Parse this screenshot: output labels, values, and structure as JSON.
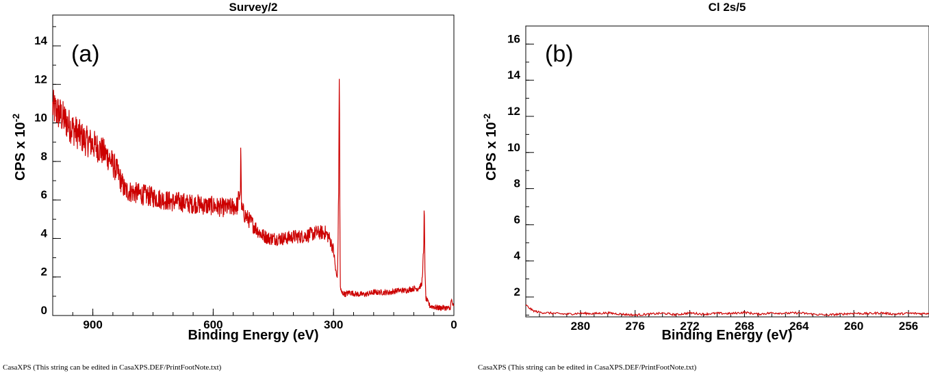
{
  "chart_data": [
    {
      "type": "line",
      "title": "Survey/2",
      "panel_tag": "(a)",
      "xlabel": "Binding Energy (eV)",
      "ylabel_main": "CPS x 10",
      "ylabel_exp": "-2",
      "xlim": [
        1000,
        0
      ],
      "ylim": [
        0,
        15.6
      ],
      "x_ticks": [
        900,
        600,
        300,
        0
      ],
      "y_ticks": [
        0,
        2,
        4,
        6,
        8,
        10,
        12,
        14
      ],
      "x_minor_step": 50,
      "y_minor_step": 1,
      "footnote": "CasaXPS (This string can be edited in CasaXPS.DEF/PrintFootNote.txt)",
      "line_color": "#cc0000",
      "series": [
        {
          "x": [
            1000,
            980,
            960,
            940,
            920,
            900,
            880,
            860,
            840,
            820,
            800,
            780,
            760,
            740,
            720,
            700,
            680,
            660,
            640,
            620,
            600,
            580,
            560,
            540,
            532,
            531,
            530,
            529,
            520,
            500,
            480,
            460,
            440,
            420,
            400,
            380,
            360,
            340,
            320,
            310,
            300,
            295,
            292,
            290,
            287,
            286,
            285,
            284,
            283,
            282,
            280,
            270,
            260,
            240,
            220,
            200,
            180,
            160,
            140,
            120,
            100,
            90,
            80,
            75,
            74,
            73,
            72,
            70,
            60,
            40,
            20,
            10,
            6,
            2,
            0
          ],
          "y": [
            10.8,
            10.4,
            9.9,
            9.5,
            9.1,
            8.9,
            8.6,
            8.2,
            7.5,
            6.5,
            6.4,
            6.3,
            6.2,
            6.1,
            6.0,
            5.9,
            5.9,
            5.8,
            5.8,
            5.7,
            5.7,
            5.6,
            5.6,
            5.7,
            6.5,
            9.5,
            6.4,
            5.5,
            5.2,
            4.7,
            4.2,
            4.0,
            4.0,
            4.0,
            4.1,
            4.1,
            4.2,
            4.3,
            4.3,
            4.0,
            3.4,
            2.4,
            2.0,
            2.2,
            6.5,
            13.6,
            10.0,
            4.0,
            1.6,
            1.3,
            1.2,
            1.1,
            1.2,
            1.1,
            1.1,
            1.2,
            1.2,
            1.2,
            1.3,
            1.3,
            1.4,
            1.4,
            1.6,
            3.5,
            5.8,
            4.5,
            2.2,
            0.9,
            0.5,
            0.4,
            0.4,
            0.35,
            0.8,
            0.5,
            0.4
          ]
        }
      ]
    },
    {
      "type": "line",
      "title": "Cl 2s/5",
      "panel_tag": "(b)",
      "xlabel": "Binding Energy (eV)",
      "ylabel_main": "CPS x 10",
      "ylabel_exp": "-2",
      "xlim": [
        284,
        254.5
      ],
      "ylim": [
        0.9,
        17
      ],
      "x_ticks": [
        280,
        276,
        272,
        268,
        264,
        260,
        256
      ],
      "y_ticks": [
        2,
        4,
        6,
        8,
        10,
        12,
        14,
        16
      ],
      "x_minor_step": 1,
      "y_minor_step": 1,
      "footnote": "CasaXPS (This string can be edited in CasaXPS.DEF/PrintFootNote.txt)",
      "line_color": "#cc0000",
      "series": [
        {
          "x": [
            284,
            283.5,
            283,
            282,
            281,
            280,
            279,
            278,
            277,
            276,
            275,
            274,
            273,
            272,
            271,
            270,
            269,
            268,
            267,
            266,
            265,
            264,
            263,
            262,
            261,
            260,
            259,
            258,
            257,
            256,
            255,
            254.5
          ],
          "y": [
            1.55,
            1.25,
            1.15,
            1.1,
            1.05,
            1.1,
            1.08,
            1.12,
            1.05,
            1.0,
            1.05,
            1.1,
            1.02,
            1.12,
            1.05,
            1.1,
            1.08,
            1.15,
            1.05,
            1.12,
            1.1,
            1.12,
            1.05,
            1.0,
            1.05,
            1.1,
            1.08,
            1.12,
            1.05,
            1.1,
            1.08,
            1.1
          ]
        }
      ]
    }
  ]
}
